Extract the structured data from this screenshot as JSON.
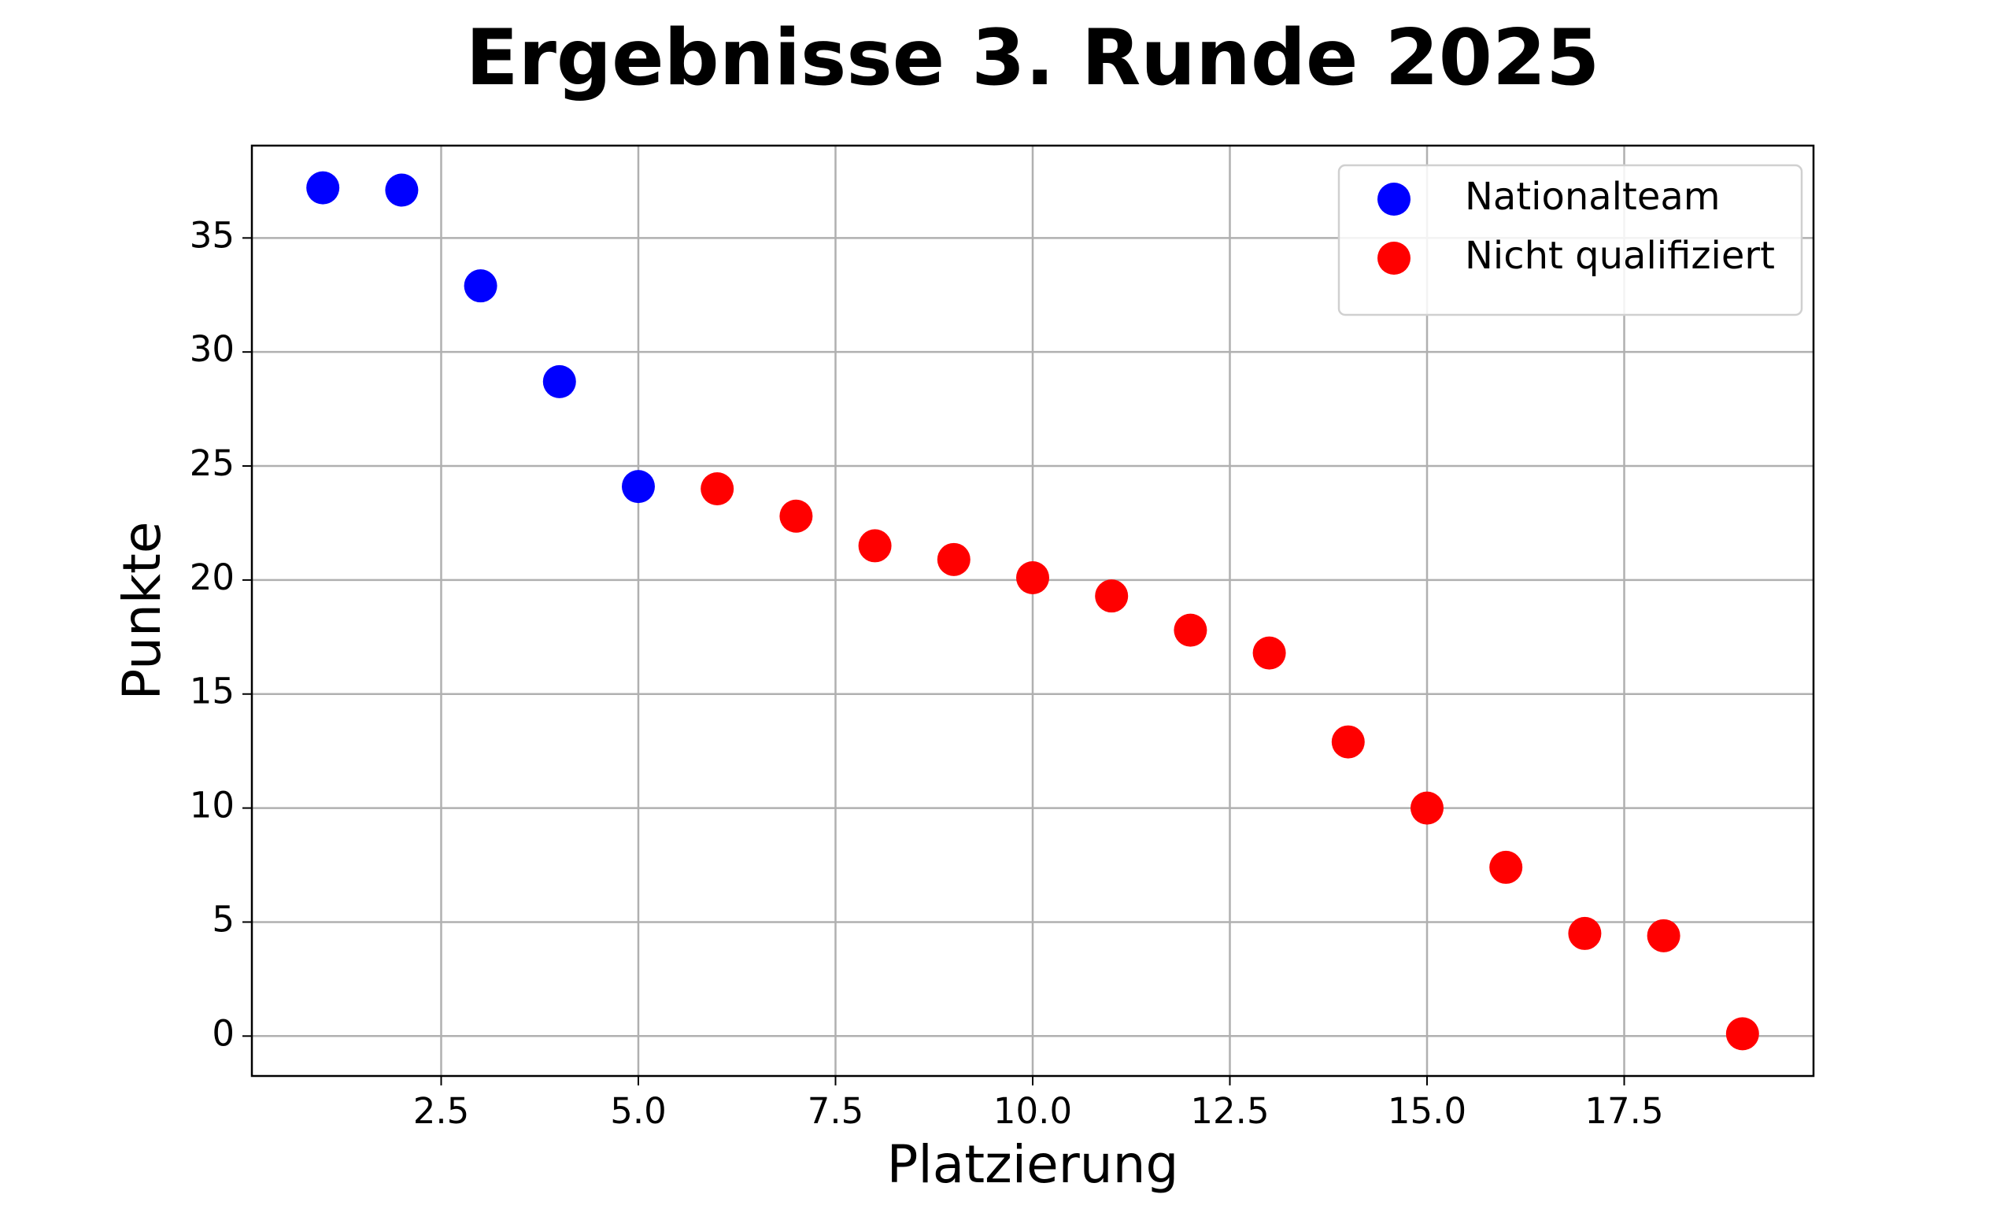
{
  "chart_data": {
    "type": "scatter",
    "title": "Ergebnisse 3. Runde 2025",
    "xlabel": "Platzierung",
    "ylabel": "Punkte",
    "series": [
      {
        "name": "Nationalteam",
        "color": "#0000ff",
        "x": [
          1,
          2,
          3,
          4,
          5
        ],
        "values": [
          37.2,
          37.1,
          32.9,
          28.7,
          24.1
        ]
      },
      {
        "name": "Nicht qualifiziert",
        "color": "#ff0000",
        "x": [
          6,
          7,
          8,
          9,
          10,
          11,
          12,
          13,
          14,
          15,
          16,
          17,
          18,
          19
        ],
        "values": [
          24.0,
          22.8,
          21.5,
          20.9,
          20.1,
          19.3,
          17.8,
          16.8,
          12.9,
          10.0,
          7.4,
          4.5,
          4.4,
          0.1
        ]
      }
    ],
    "xlim": [
      0.1,
      19.9
    ],
    "ylim": [
      -1.75,
      39.05
    ],
    "xticks": [
      2.5,
      {
        "value": 5,
        "label": "5.0"
      },
      7.5,
      {
        "value": 10,
        "label": "10.0"
      },
      12.5,
      {
        "value": 15,
        "label": "15.0"
      },
      17.5
    ],
    "yticks": [
      0,
      5,
      10,
      15,
      20,
      25,
      30,
      35
    ],
    "grid": true,
    "legend": "upper right"
  }
}
